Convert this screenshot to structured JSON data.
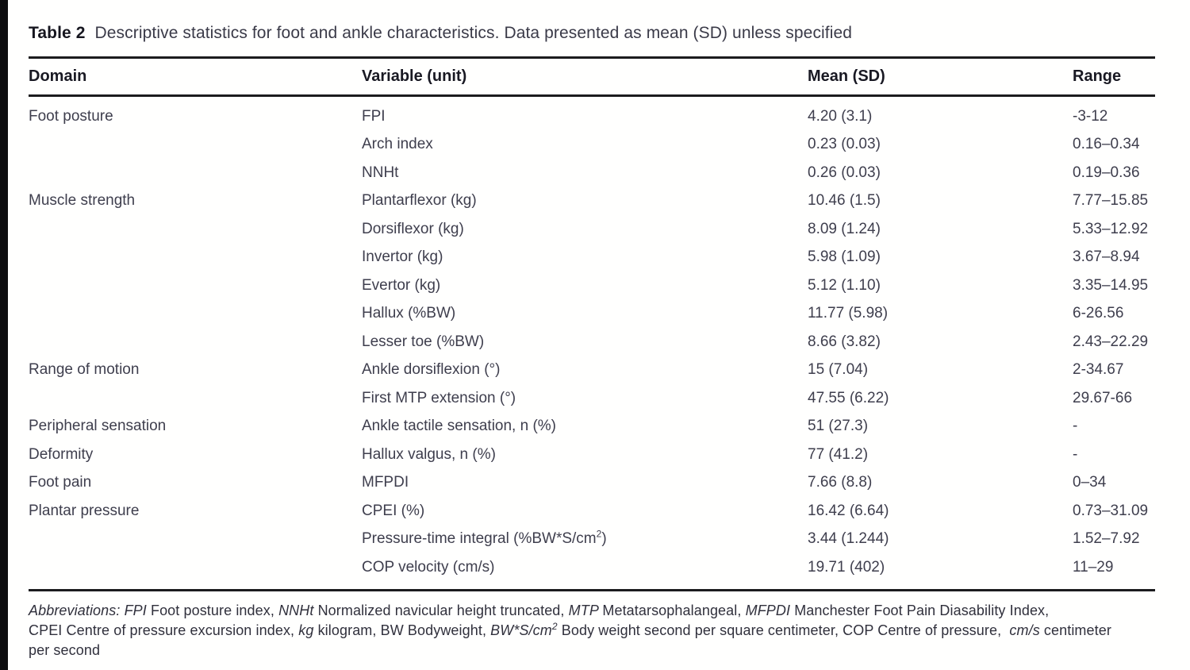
{
  "page": {
    "edge_bar_color": "#0d0d0f",
    "background_color": "#ffffff",
    "rule_color": "#1c1c1e"
  },
  "caption": {
    "label": "Table 2",
    "text": "Descriptive statistics for foot and ankle characteristics. Data presented as mean (SD) unless specified"
  },
  "table": {
    "columns": [
      "Domain",
      "Variable (unit)",
      "Mean (SD)",
      "Range"
    ],
    "rows": [
      {
        "domain": "Foot posture",
        "variable": "FPI",
        "mean": "4.20 (3.1)",
        "range": "-3-12"
      },
      {
        "domain": "",
        "variable": "Arch index",
        "mean": "0.23 (0.03)",
        "range": "0.16–0.34"
      },
      {
        "domain": "",
        "variable": "NNHt",
        "mean": "0.26 (0.03)",
        "range": "0.19–0.36"
      },
      {
        "domain": "Muscle strength",
        "variable": "Plantarflexor (kg)",
        "mean": "10.46 (1.5)",
        "range": "7.77–15.85"
      },
      {
        "domain": "",
        "variable": "Dorsiflexor (kg)",
        "mean": "8.09 (1.24)",
        "range": "5.33–12.92"
      },
      {
        "domain": "",
        "variable": "Invertor (kg)",
        "mean": "5.98 (1.09)",
        "range": "3.67–8.94"
      },
      {
        "domain": "",
        "variable": "Evertor (kg)",
        "mean": "5.12 (1.10)",
        "range": "3.35–14.95"
      },
      {
        "domain": "",
        "variable": "Hallux (%BW)",
        "mean": "11.77 (5.98)",
        "range": "6-26.56"
      },
      {
        "domain": "",
        "variable": "Lesser toe (%BW)",
        "mean": "8.66 (3.82)",
        "range": "2.43–22.29"
      },
      {
        "domain": "Range of motion",
        "variable": "Ankle dorsiflexion (°)",
        "mean": "15 (7.04)",
        "range": "2-34.67"
      },
      {
        "domain": "",
        "variable": "First MTP extension (°)",
        "mean": "47.55 (6.22)",
        "range": "29.67-66"
      },
      {
        "domain": "Peripheral sensation",
        "variable": "Ankle tactile sensation, n (%)",
        "mean": "51 (27.3)",
        "range": "-"
      },
      {
        "domain": "Deformity",
        "variable": "Hallux valgus, n (%)",
        "mean": "77 (41.2)",
        "range": "-"
      },
      {
        "domain": "Foot pain",
        "variable": "MFPDI",
        "mean": "7.66 (8.8)",
        "range": "0–34"
      },
      {
        "domain": "Plantar pressure",
        "variable": "CPEI (%)",
        "mean": "16.42 (6.64)",
        "range": "0.73–31.09"
      },
      {
        "domain": "",
        "variable": "Pressure-time integral (%BW*S/cm",
        "variable_sup": "2",
        "variable_suffix": ")",
        "mean": "3.44 (1.244)",
        "range": "1.52–7.92"
      },
      {
        "domain": "",
        "variable": "COP velocity (cm/s)",
        "mean": "19.71 (402)",
        "range": "11–29"
      }
    ]
  },
  "footnote": {
    "lines": [
      [
        {
          "t": "Abbreviations: FPI ",
          "i": true
        },
        {
          "t": "Foot posture index, ",
          "i": false
        },
        {
          "t": "NNHt ",
          "i": true
        },
        {
          "t": "Normalized navicular height truncated, ",
          "i": false
        },
        {
          "t": "MTP ",
          "i": true
        },
        {
          "t": "Metatarsophalangeal, ",
          "i": false
        },
        {
          "t": "MFPDI ",
          "i": true
        },
        {
          "t": "Manchester Foot Pain Diasability Index,",
          "i": false
        }
      ],
      [
        {
          "t": "CPEI Centre of pressure excursion index, ",
          "i": false
        },
        {
          "t": "kg ",
          "i": true
        },
        {
          "t": "kilogram, BW Bodyweight, ",
          "i": false
        },
        {
          "t": "BW*S/cm",
          "i": true
        },
        {
          "t": "2",
          "i": true,
          "sup": true
        },
        {
          "t": " Body weight second per square centimeter, COP Centre of pressure,  ",
          "i": false
        },
        {
          "t": "cm/s ",
          "i": true
        },
        {
          "t": "centimeter",
          "i": false
        }
      ],
      [
        {
          "t": "per second",
          "i": false
        }
      ]
    ]
  }
}
